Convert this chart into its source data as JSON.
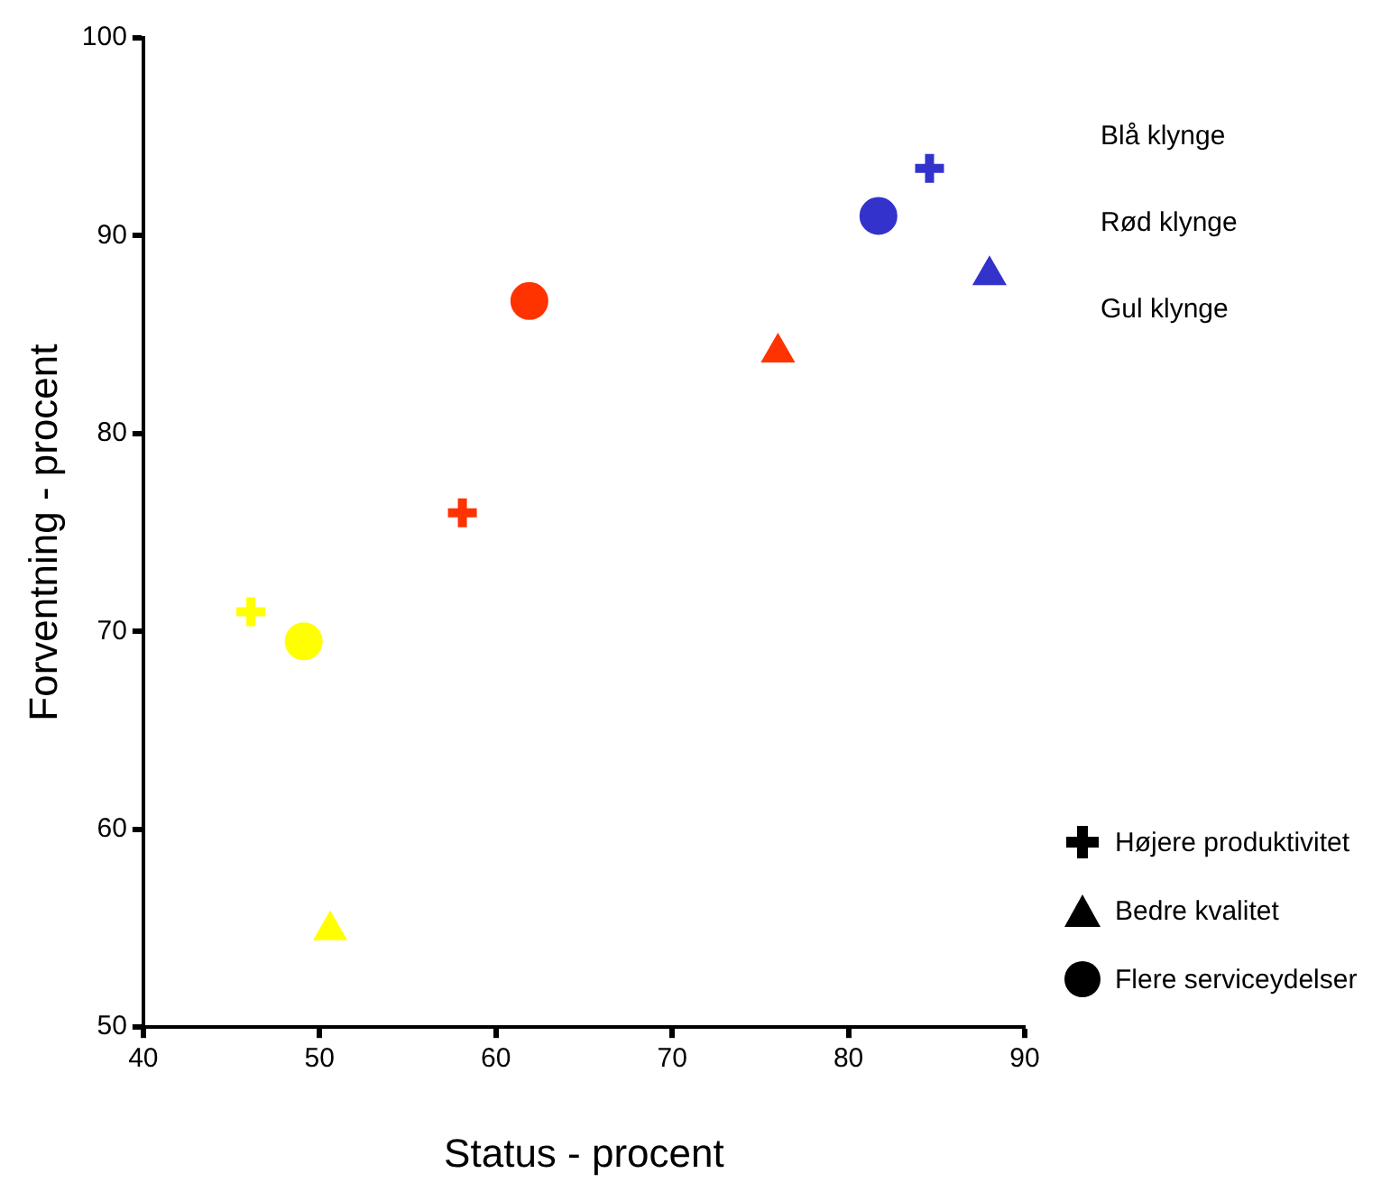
{
  "chart_data": {
    "type": "scatter",
    "xlabel": "Status - procent",
    "ylabel": "Forventning - procent",
    "annotations": [
      "Blå klynge",
      "Rød klynge",
      "Gul klynge",
      "Højere produktivitet",
      "Bedre kvalitet",
      "Flere serviceydelser"
    ],
    "series": [
      {
        "marker": "cross",
        "color": "#000000",
        "x": [
          84.6,
          58.1,
          46.1
        ],
        "values": [
          93.4,
          76.0,
          71.0
        ],
        "colors": [
          "#3333cc",
          "#ff3300",
          "#ffff00"
        ]
      },
      {
        "marker": "triangle",
        "color": "#000000",
        "x": [
          88.0,
          76.0,
          50.6
        ],
        "values": [
          88.0,
          84.1,
          54.9
        ],
        "colors": [
          "#3333cc",
          "#ff3300",
          "#ffff00"
        ]
      },
      {
        "marker": "circle",
        "color": "#000000",
        "x": [
          81.7,
          61.9,
          49.1
        ],
        "values": [
          91.0,
          86.7,
          69.5
        ],
        "colors": [
          "#3333cc",
          "#ff3300",
          "#ffff00"
        ]
      }
    ],
    "xlim": [
      40,
      90
    ],
    "xticks": [
      40,
      50,
      60,
      70,
      80,
      90
    ],
    "ylim": [
      50,
      100
    ],
    "yticks": [
      50,
      60,
      70,
      80,
      90,
      100
    ],
    "grid": false
  }
}
